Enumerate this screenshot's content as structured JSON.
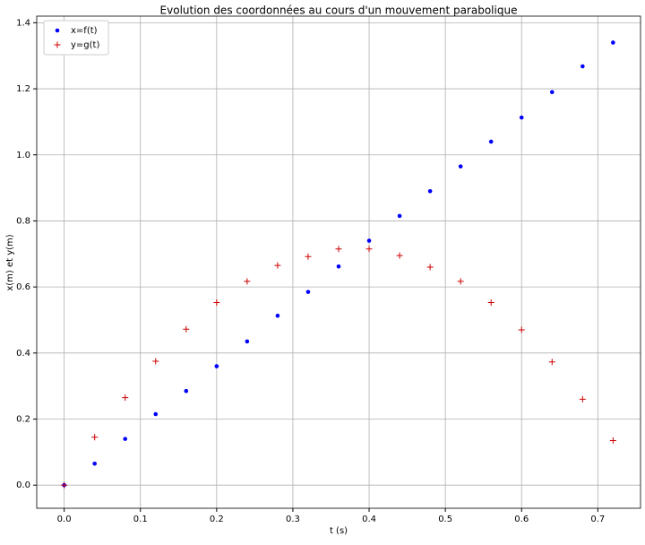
{
  "chart_data": {
    "type": "scatter",
    "title": "Evolution des coordonnées au cours d'un mouvement parabolique",
    "xlabel": "t (s)",
    "ylabel": "x(m) et y(m)",
    "x": [
      0,
      0.04,
      0.08,
      0.12,
      0.16,
      0.2,
      0.24,
      0.28,
      0.32,
      0.36,
      0.4,
      0.44,
      0.48,
      0.52,
      0.56,
      0.6,
      0.64,
      0.68,
      0.72
    ],
    "series": [
      {
        "name": "x=f(t)",
        "color": "#0000ff",
        "marker": ".",
        "values": [
          0,
          0.065,
          0.14,
          0.215,
          0.285,
          0.36,
          0.435,
          0.513,
          0.585,
          0.662,
          0.74,
          0.815,
          0.89,
          0.965,
          1.04,
          1.113,
          1.19,
          1.268,
          1.34
        ]
      },
      {
        "name": "y=g(t)",
        "color": "#cc0000",
        "marker": "+",
        "values": [
          0,
          0.145,
          0.265,
          0.375,
          0.472,
          0.553,
          0.617,
          0.665,
          0.692,
          0.715,
          0.715,
          0.695,
          0.66,
          0.617,
          0.553,
          0.47,
          0.373,
          0.26,
          0.135
        ]
      }
    ],
    "xlim": [
      -0.036,
      0.756
    ],
    "ylim": [
      -0.07,
      1.42
    ],
    "xticks": [
      {
        "value": 0,
        "label": "0.0"
      },
      0.1,
      0.2,
      0.3,
      0.4,
      0.5,
      0.6,
      0.7
    ],
    "yticks": [
      {
        "value": 0,
        "label": "0.0"
      },
      0.2,
      0.4,
      0.6,
      0.8,
      {
        "value": 1,
        "label": "1.0"
      },
      1.2,
      1.4
    ],
    "grid": true,
    "legend": "upper-left"
  }
}
